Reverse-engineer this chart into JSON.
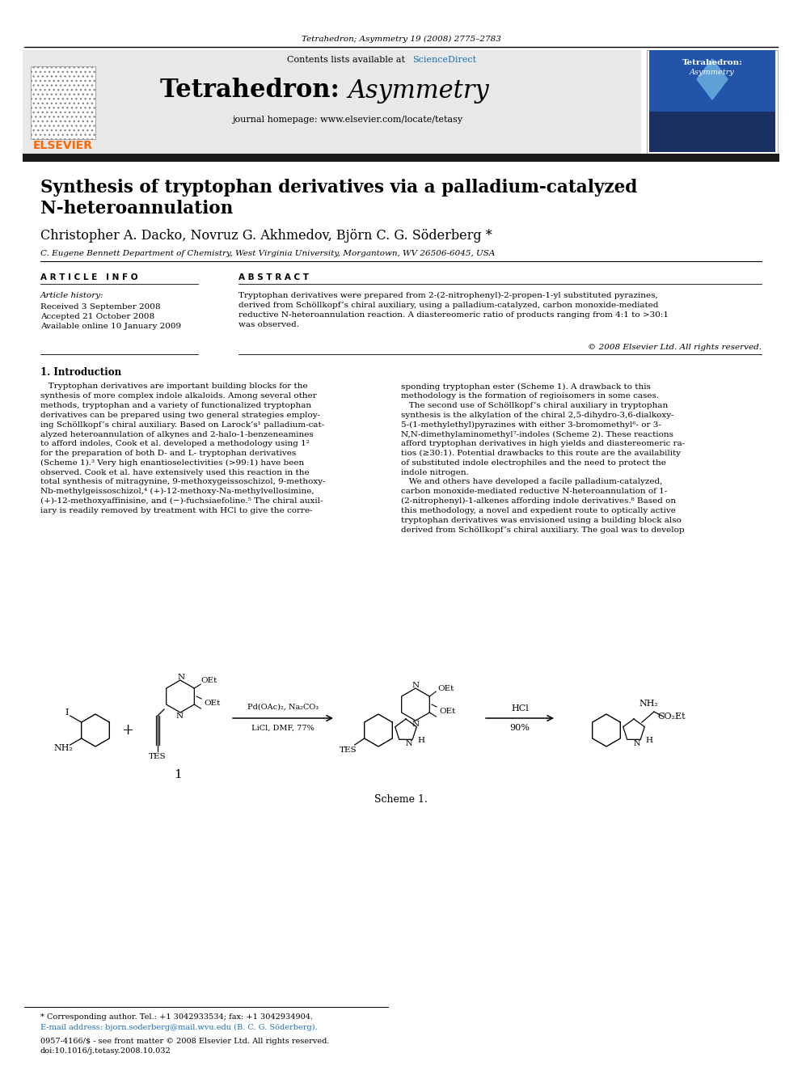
{
  "page_title": "Tetrahedron; Asymmetry 19 (2008) 2775–2783",
  "journal_name": "Tetrahedron: Asymmetry",
  "journal_url": "journal homepage: www.elsevier.com/locate/tetasy",
  "contents_line": "Contents lists available at ",
  "sciencedirect": "ScienceDirect",
  "article_title_line1": "Synthesis of tryptophan derivatives via a palladium-catalyzed",
  "article_title_line2": "N-heteroannulation",
  "authors": "Christopher A. Dacko, Novruz G. Akhmedov, Björn C. G. Söderberg *",
  "affiliation": "C. Eugene Bennett Department of Chemistry, West Virginia University, Morgantown, WV 26506-6045, USA",
  "article_info_header": "A R T I C L E   I N F O",
  "abstract_header": "A B S T R A C T",
  "article_history_label": "Article history:",
  "received": "Received 3 September 2008",
  "accepted": "Accepted 21 October 2008",
  "available": "Available online 10 January 2009",
  "copyright": "© 2008 Elsevier Ltd. All rights reserved.",
  "intro_header": "1. Introduction",
  "scheme_label": "Scheme 1.",
  "compound_label": "1",
  "reaction1_reagents": "Pd(OAc)₂, Na₂CO₃",
  "reaction1_conditions": "LiCl, DMF, 77%",
  "reaction2_reagents": "HCl",
  "reaction2_yield": "90%",
  "footer_asterisk": "* Corresponding author. Tel.: +1 3042933534; fax: +1 3042934904.",
  "footer_email": "E-mail address: bjorn.soderberg@mail.wvu.edu (B. C. G. Söderberg).",
  "footer_issn": "0957-4166/$ - see front matter © 2008 Elsevier Ltd. All rights reserved.",
  "footer_doi": "doi:10.1016/j.tetasy.2008.10.032",
  "bg_color": "#ffffff",
  "header_bg": "#e8e8e8",
  "elsevier_orange": "#FF6600",
  "sciencedirect_blue": "#1a6eb5",
  "title_bar_color": "#1a1a1a"
}
